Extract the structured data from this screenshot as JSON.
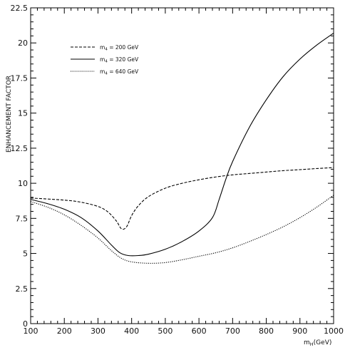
{
  "chart_data": {
    "type": "line",
    "title": "",
    "xlabel": "m_H(GeV)",
    "xlabel_parts": {
      "main": "m",
      "sub": "H",
      "unit": "(GeV)"
    },
    "ylabel": "ENHANCEMENT FACTOR",
    "xlim": [
      100,
      1000
    ],
    "ylim": [
      0,
      22.5
    ],
    "xticks": [
      100,
      200,
      300,
      400,
      500,
      600,
      700,
      800,
      900,
      1000
    ],
    "yticks": [
      0,
      2.5,
      5,
      7.5,
      10,
      12.5,
      15,
      17.5,
      20,
      22.5
    ],
    "ytick_labels": [
      "0",
      "2.5",
      "5",
      "7.5",
      "10",
      "12.5",
      "15",
      "17.5",
      "20",
      "22.5"
    ],
    "xtick_labels": [
      "100",
      "200",
      "300",
      "400",
      "500",
      "600",
      "700",
      "800",
      "900",
      "1000"
    ],
    "grid": false,
    "legend_position": "top-left",
    "series": [
      {
        "name": "m_4 = 200 GeV",
        "label_parts": {
          "main": "m",
          "sub": "4",
          "rest": " = 200 GeV"
        },
        "dash": "4,2",
        "x": [
          100,
          200,
          250,
          300,
          330,
          355,
          370,
          385,
          400,
          420,
          450,
          500,
          550,
          600,
          650,
          700,
          750,
          800,
          850,
          900,
          950,
          1000
        ],
        "y": [
          8.95,
          8.8,
          8.65,
          8.35,
          7.95,
          7.3,
          6.75,
          6.9,
          7.7,
          8.4,
          9.05,
          9.65,
          10.0,
          10.25,
          10.45,
          10.6,
          10.7,
          10.8,
          10.9,
          10.97,
          11.05,
          11.12
        ]
      },
      {
        "name": "m_4 = 320 GeV",
        "label_parts": {
          "main": "m",
          "sub": "4",
          "rest": " = 320 GeV"
        },
        "dash": "",
        "x": [
          100,
          150,
          200,
          250,
          300,
          340,
          365,
          390,
          420,
          450,
          500,
          550,
          600,
          640,
          660,
          680,
          700,
          750,
          800,
          850,
          900,
          950,
          1000
        ],
        "y": [
          8.85,
          8.55,
          8.15,
          7.55,
          6.6,
          5.6,
          5.05,
          4.85,
          4.85,
          4.95,
          5.3,
          5.85,
          6.6,
          7.55,
          8.85,
          10.3,
          11.55,
          14.0,
          15.95,
          17.6,
          18.85,
          19.85,
          20.7
        ]
      },
      {
        "name": "m_4 = 640 GeV",
        "label_parts": {
          "main": "m",
          "sub": "4",
          "rest": " = 640 GeV"
        },
        "dash": "1.2,1.6",
        "x": [
          100,
          150,
          200,
          250,
          300,
          340,
          370,
          400,
          450,
          500,
          550,
          600,
          650,
          700,
          750,
          800,
          850,
          900,
          950,
          1000
        ],
        "y": [
          8.7,
          8.3,
          7.75,
          7.0,
          6.1,
          5.2,
          4.65,
          4.4,
          4.3,
          4.35,
          4.55,
          4.8,
          5.05,
          5.4,
          5.85,
          6.35,
          6.9,
          7.55,
          8.3,
          9.15
        ]
      }
    ]
  }
}
